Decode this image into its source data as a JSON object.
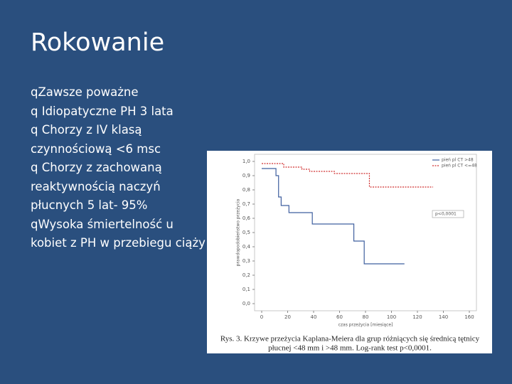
{
  "slide": {
    "title": "Rokowanie",
    "bullets": [
      "qZawsze poważne",
      "q Idiopatyczne PH 3 lata",
      "q Chorzy z IV klasą czynnościową <6 msc",
      "q Chorzy z zachowaną reaktywnością naczyń płucnych 5 lat- 95%",
      "qWysoka śmiertelność u kobiet z PH w przebiegu ciąży"
    ]
  },
  "chart_data": {
    "type": "step",
    "x_label": "czas przeżycia [miesiące]",
    "y_label": "prawdopodobieństwo przeżycia",
    "annotation": "p<0,0001",
    "caption": [
      "Rys. 3. Krzywe przeżycia Kaplana-Meiera dla grup różniących się średnicą tętnicy",
      "płucnej <48 mm i >48 mm. Log-rank test p<0,0001."
    ],
    "legend": "upper right",
    "grid": false,
    "xlim": [
      0,
      160
    ],
    "xticks": [
      0,
      20,
      40,
      60,
      80,
      100,
      120,
      140,
      160
    ],
    "ylim": [
      0,
      1
    ],
    "yticks": [
      {
        "value": 0,
        "label": "0,0"
      },
      {
        "value": 0.1,
        "label": "0,1"
      },
      {
        "value": 0.2,
        "label": "0,2"
      },
      {
        "value": 0.3,
        "label": "0,3"
      },
      {
        "value": 0.4,
        "label": "0,4"
      },
      {
        "value": 0.5,
        "label": "0,5"
      },
      {
        "value": 0.6,
        "label": "0,6"
      },
      {
        "value": 0.7,
        "label": "0,7"
      },
      {
        "value": 0.8,
        "label": "0,8"
      },
      {
        "value": 0.9,
        "label": "0,9"
      },
      {
        "value": 1,
        "label": "1,0"
      }
    ],
    "series": [
      {
        "name": "pień pl CT >48",
        "color": "#3f5f9f",
        "dash": false,
        "x": [
          0,
          11,
          13,
          15,
          21,
          39,
          71,
          79,
          110
        ],
        "values": [
          0.95,
          0.9,
          0.75,
          0.69,
          0.64,
          0.56,
          0.44,
          0.28,
          0.28
        ]
      },
      {
        "name": "pień pl CT <=48",
        "color": "#d03030",
        "dash": true,
        "x": [
          0,
          17,
          31,
          37,
          56,
          83,
          132
        ],
        "values": [
          0.985,
          0.96,
          0.945,
          0.93,
          0.915,
          0.82,
          0.82
        ]
      }
    ]
  }
}
